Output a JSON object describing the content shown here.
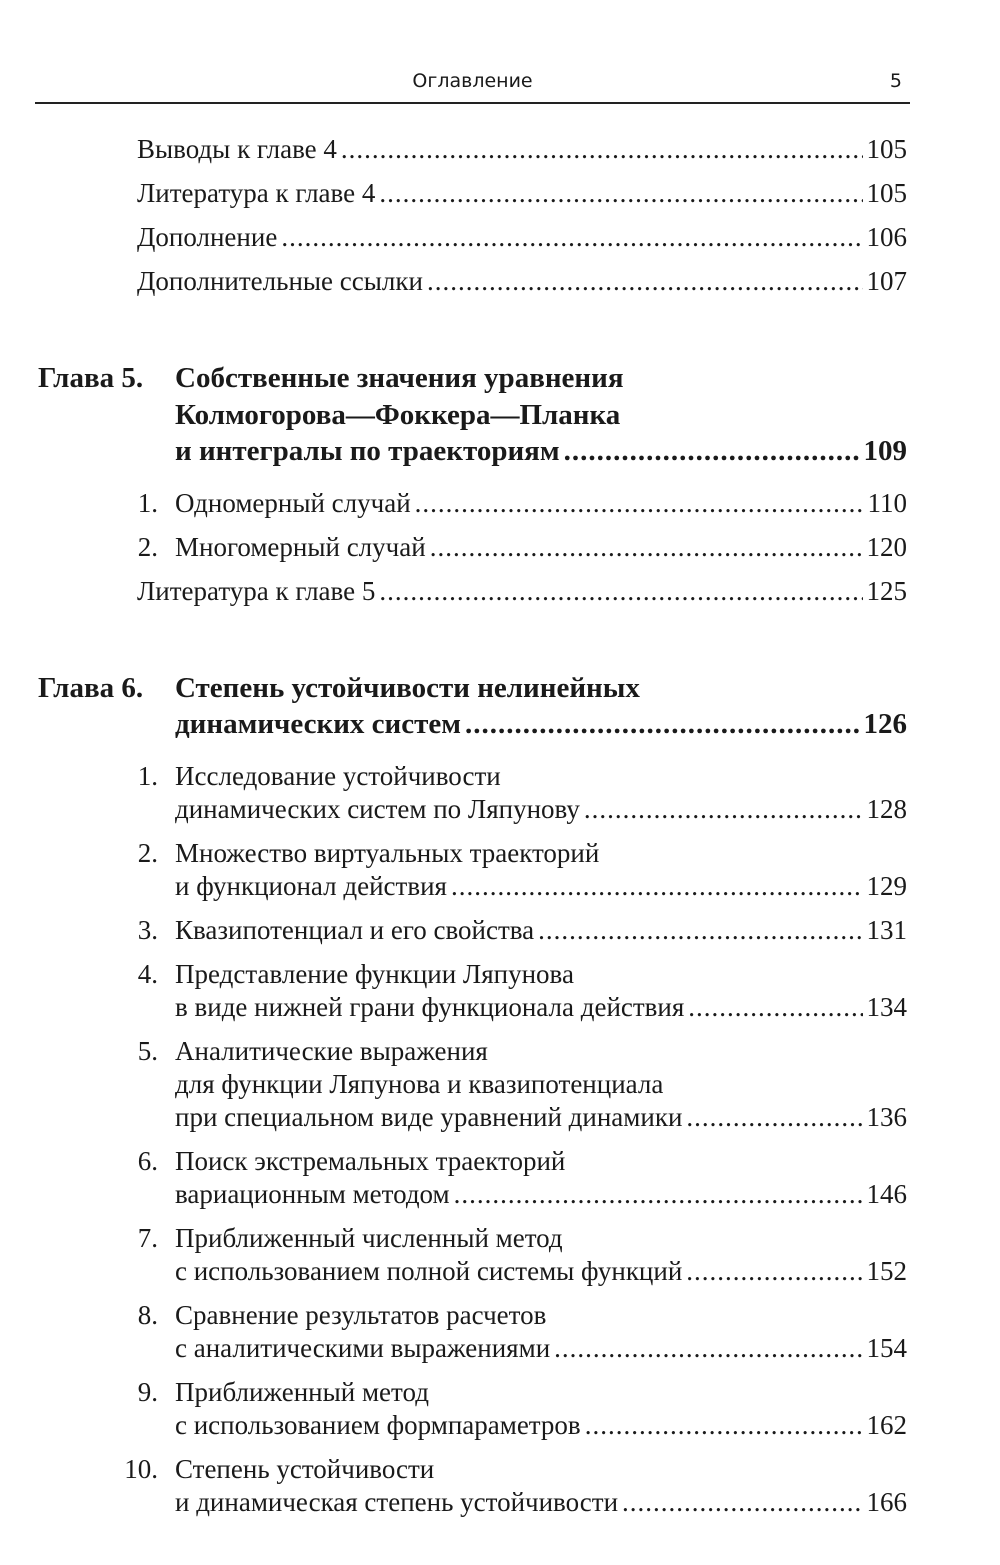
{
  "header": {
    "title": "Оглавление",
    "page_number": "5"
  },
  "toc": [
    {
      "type": "item",
      "lines": [
        "Выводы к главе 4"
      ],
      "page": "105"
    },
    {
      "type": "item",
      "lines": [
        "Литература к главе 4"
      ],
      "page": "105"
    },
    {
      "type": "item",
      "lines": [
        "Дополнение"
      ],
      "page": "106"
    },
    {
      "type": "item",
      "lines": [
        "Дополнительные ссылки"
      ],
      "page": "107"
    },
    {
      "type": "chapter",
      "num": "Глава 5.",
      "lines": [
        "Собственные значения уравнения",
        "Колмогорова—Фоккера—Планка",
        "и интегралы по траекториям"
      ],
      "page": "109"
    },
    {
      "type": "item",
      "num": "1.",
      "lines": [
        "Одномерный случай"
      ],
      "page": "110"
    },
    {
      "type": "item",
      "num": "2.",
      "lines": [
        "Многомерный случай"
      ],
      "page": "120"
    },
    {
      "type": "item",
      "lines": [
        "Литература к главе 5"
      ],
      "page": "125"
    },
    {
      "type": "chapter",
      "num": "Глава 6.",
      "lines": [
        "Степень устойчивости нелинейных",
        "динамических систем"
      ],
      "page": "126"
    },
    {
      "type": "item",
      "num": "1.",
      "lines": [
        "Исследование устойчивости",
        "динамических систем по Ляпунову"
      ],
      "page": "128"
    },
    {
      "type": "item",
      "num": "2.",
      "lines": [
        "Множество виртуальных траекторий",
        "и функционал действия"
      ],
      "page": "129"
    },
    {
      "type": "item",
      "num": "3.",
      "lines": [
        "Квазипотенциал и его свойства"
      ],
      "page": "131"
    },
    {
      "type": "item",
      "num": "4.",
      "lines": [
        "Представление функции Ляпунова",
        "в виде нижней грани функционала действия"
      ],
      "page": "134"
    },
    {
      "type": "item",
      "num": "5.",
      "lines": [
        "Аналитические выражения",
        "для функции Ляпунова и квазипотенциала",
        "при специальном виде уравнений динамики"
      ],
      "page": "136"
    },
    {
      "type": "item",
      "num": "6.",
      "lines": [
        "Поиск экстремальных траекторий",
        "вариационным методом"
      ],
      "page": "146"
    },
    {
      "type": "item",
      "num": "7.",
      "lines": [
        "Приближенный численный метод",
        "с использованием полной системы функций"
      ],
      "page": "152"
    },
    {
      "type": "item",
      "num": "8.",
      "lines": [
        "Сравнение результатов расчетов",
        "с аналитическими выражениями"
      ],
      "page": "154"
    },
    {
      "type": "item",
      "num": "9.",
      "lines": [
        "Приближенный метод",
        "с использованием формпараметров"
      ],
      "page": "162"
    },
    {
      "type": "item",
      "num": "10.",
      "lines": [
        "Степень устойчивости",
        "и динамическая степень устойчивости"
      ],
      "page": "166"
    }
  ]
}
